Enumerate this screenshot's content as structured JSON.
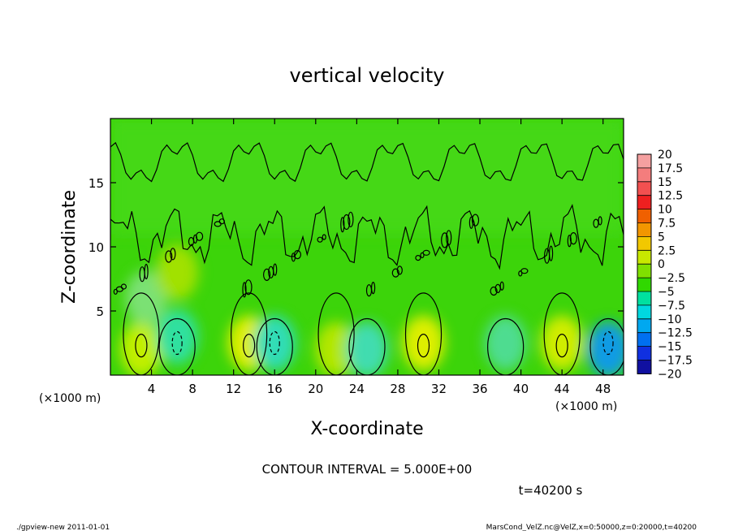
{
  "chart_data": {
    "type": "heatmap",
    "title": "vertical velocity",
    "xlabel": "X-coordinate",
    "ylabel": "Z-coordinate",
    "x_unit_left": "(×1000 m)",
    "x_unit_right": "(×1000 m)",
    "xlim": [
      0,
      50
    ],
    "ylim": [
      0,
      20
    ],
    "xticks": [
      4,
      8,
      12,
      16,
      20,
      24,
      28,
      32,
      36,
      40,
      44,
      48
    ],
    "yticks": [
      5,
      10,
      15
    ],
    "colorbar": {
      "levels": [
        "20",
        "17.5",
        "15",
        "12.5",
        "10",
        "7.5",
        "5",
        "2.5",
        "0",
        "−2.5",
        "−5",
        "−7.5",
        "−10",
        "−12.5",
        "−15",
        "−17.5",
        "−20"
      ],
      "colors": [
        "#f5a0a0",
        "#f47d7d",
        "#f25050",
        "#ee2020",
        "#f06000",
        "#f29600",
        "#f2c800",
        "#c8e800",
        "#80e000",
        "#30d800",
        "#00e0a0",
        "#00d8e0",
        "#00a8f0",
        "#0070f0",
        "#1030e0",
        "#1010a0",
        "#7020b0"
      ]
    },
    "field_shading": {
      "background": "#3cd40a",
      "upper_field": "#44d812",
      "hotspots": [
        {
          "x": 3,
          "z": 2,
          "value": 5,
          "color": "#c8f000"
        },
        {
          "x": 13.5,
          "z": 2.5,
          "value": 7.5,
          "color": "#e6f000"
        },
        {
          "x": 22,
          "z": 2,
          "value": 5,
          "color": "#b8e800"
        },
        {
          "x": 30.5,
          "z": 2.5,
          "value": 7.5,
          "color": "#e6f000"
        },
        {
          "x": 44,
          "z": 2.5,
          "value": 7.5,
          "color": "#d8ee00"
        },
        {
          "x": 3.5,
          "z": 6,
          "value": -2.5,
          "color": "#7ee27a"
        },
        {
          "x": 6.5,
          "z": 8,
          "value": 2.5,
          "color": "#a6e200"
        }
      ],
      "coldspots": [
        {
          "x": 6.5,
          "z": 3,
          "value": -5,
          "color": "#2ee0a8"
        },
        {
          "x": 16,
          "z": 2.5,
          "value": -5,
          "color": "#30dcc0"
        },
        {
          "x": 25,
          "z": 2,
          "value": -5,
          "color": "#40dcb8"
        },
        {
          "x": 38.5,
          "z": 2.5,
          "value": -2.5,
          "color": "#50dc98"
        },
        {
          "x": 48.5,
          "z": 2,
          "value": -10,
          "color": "#1098f0"
        }
      ]
    },
    "contour_interval_text": "CONTOUR INTERVAL = 5.000E+00",
    "time_text": "t=40200 s",
    "footer_left": "./gpview-new  2011-01-01",
    "footer_right": "MarsCond_VelZ.nc@VelZ,x=0:50000,z=0:20000,t=40200"
  }
}
